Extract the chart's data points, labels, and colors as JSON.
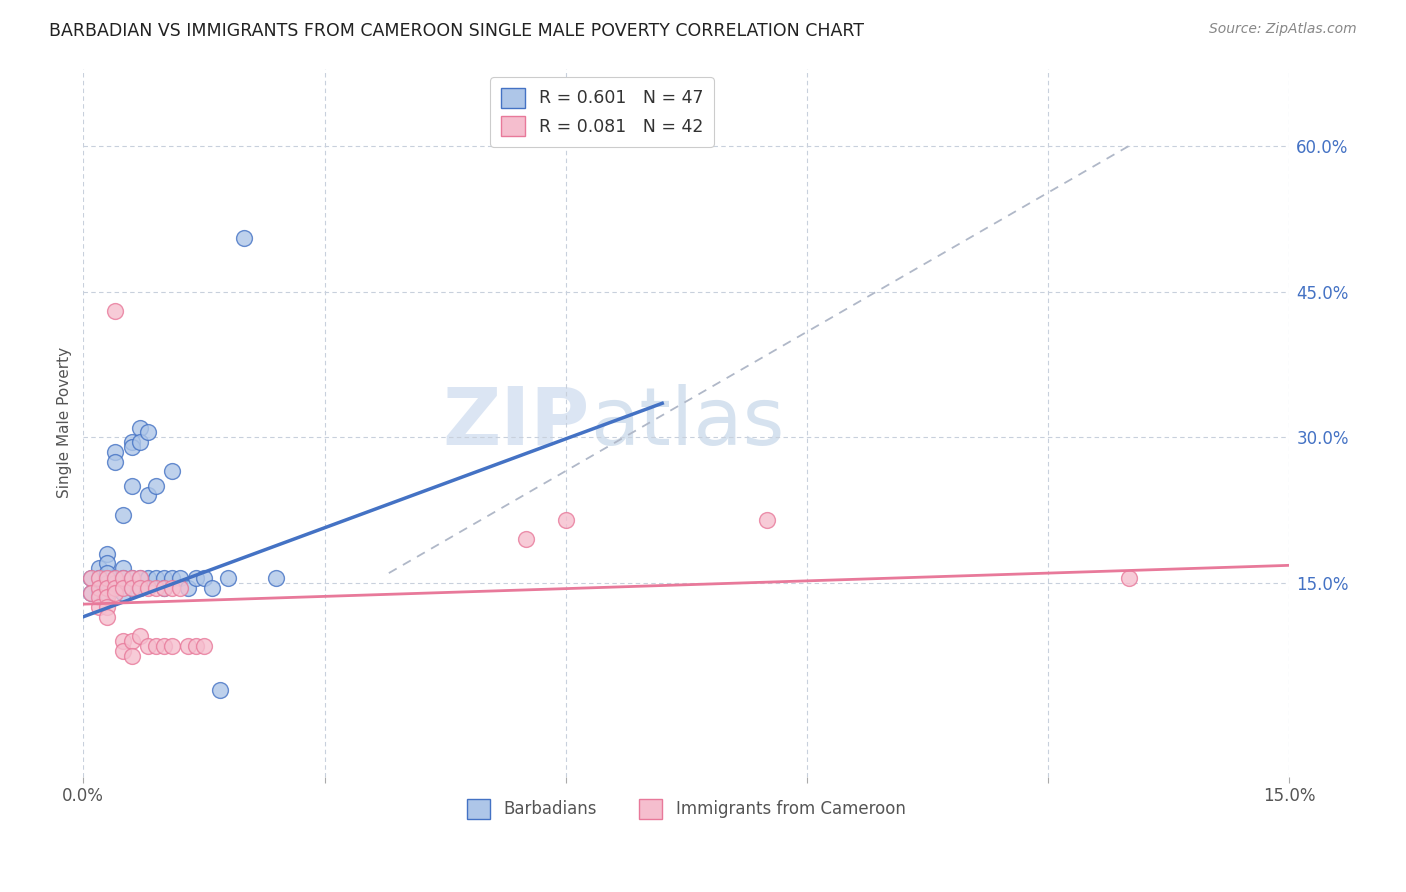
{
  "title": "BARBADIAN VS IMMIGRANTS FROM CAMEROON SINGLE MALE POVERTY CORRELATION CHART",
  "source": "Source: ZipAtlas.com",
  "ylabel": "Single Male Poverty",
  "ylabel_ticks": [
    "15.0%",
    "30.0%",
    "45.0%",
    "60.0%"
  ],
  "ylabel_tick_vals": [
    0.15,
    0.3,
    0.45,
    0.6
  ],
  "xlim": [
    0.0,
    0.15
  ],
  "ylim": [
    -0.05,
    0.68
  ],
  "legend_label1": "Barbadians",
  "legend_label2": "Immigrants from Cameroon",
  "legend_R1": "R = 0.601",
  "legend_N1": "N = 47",
  "legend_R2": "R = 0.081",
  "legend_N2": "N = 42",
  "blue_color": "#4472c4",
  "blue_fill": "#aec6e8",
  "pink_color": "#e8799a",
  "pink_fill": "#f5bece",
  "watermark_zip": "ZIP",
  "watermark_atlas": "atlas",
  "background_color": "#ffffff",
  "grid_color": "#c8d0dc",
  "title_color": "#222222",
  "source_color": "#888888",
  "blue_scatter": [
    [
      0.001,
      0.155
    ],
    [
      0.001,
      0.14
    ],
    [
      0.002,
      0.165
    ],
    [
      0.002,
      0.155
    ],
    [
      0.002,
      0.145
    ],
    [
      0.002,
      0.14
    ],
    [
      0.003,
      0.18
    ],
    [
      0.003,
      0.17
    ],
    [
      0.003,
      0.16
    ],
    [
      0.003,
      0.15
    ],
    [
      0.003,
      0.145
    ],
    [
      0.003,
      0.14
    ],
    [
      0.004,
      0.285
    ],
    [
      0.004,
      0.275
    ],
    [
      0.004,
      0.155
    ],
    [
      0.004,
      0.15
    ],
    [
      0.005,
      0.22
    ],
    [
      0.005,
      0.165
    ],
    [
      0.005,
      0.155
    ],
    [
      0.005,
      0.14
    ],
    [
      0.006,
      0.295
    ],
    [
      0.006,
      0.29
    ],
    [
      0.006,
      0.25
    ],
    [
      0.006,
      0.155
    ],
    [
      0.006,
      0.145
    ],
    [
      0.007,
      0.31
    ],
    [
      0.007,
      0.295
    ],
    [
      0.007,
      0.155
    ],
    [
      0.007,
      0.145
    ],
    [
      0.008,
      0.305
    ],
    [
      0.008,
      0.24
    ],
    [
      0.008,
      0.155
    ],
    [
      0.009,
      0.25
    ],
    [
      0.009,
      0.155
    ],
    [
      0.01,
      0.155
    ],
    [
      0.01,
      0.145
    ],
    [
      0.011,
      0.265
    ],
    [
      0.011,
      0.155
    ],
    [
      0.012,
      0.155
    ],
    [
      0.013,
      0.145
    ],
    [
      0.014,
      0.155
    ],
    [
      0.015,
      0.155
    ],
    [
      0.016,
      0.145
    ],
    [
      0.017,
      0.04
    ],
    [
      0.018,
      0.155
    ],
    [
      0.02,
      0.505
    ],
    [
      0.024,
      0.155
    ]
  ],
  "pink_scatter": [
    [
      0.001,
      0.155
    ],
    [
      0.001,
      0.14
    ],
    [
      0.002,
      0.155
    ],
    [
      0.002,
      0.145
    ],
    [
      0.002,
      0.135
    ],
    [
      0.002,
      0.125
    ],
    [
      0.003,
      0.155
    ],
    [
      0.003,
      0.145
    ],
    [
      0.003,
      0.135
    ],
    [
      0.003,
      0.125
    ],
    [
      0.003,
      0.115
    ],
    [
      0.004,
      0.43
    ],
    [
      0.004,
      0.155
    ],
    [
      0.004,
      0.145
    ],
    [
      0.004,
      0.14
    ],
    [
      0.005,
      0.155
    ],
    [
      0.005,
      0.145
    ],
    [
      0.005,
      0.09
    ],
    [
      0.005,
      0.08
    ],
    [
      0.006,
      0.155
    ],
    [
      0.006,
      0.145
    ],
    [
      0.006,
      0.09
    ],
    [
      0.006,
      0.075
    ],
    [
      0.007,
      0.155
    ],
    [
      0.007,
      0.145
    ],
    [
      0.007,
      0.095
    ],
    [
      0.008,
      0.145
    ],
    [
      0.008,
      0.085
    ],
    [
      0.009,
      0.145
    ],
    [
      0.009,
      0.085
    ],
    [
      0.01,
      0.145
    ],
    [
      0.01,
      0.085
    ],
    [
      0.011,
      0.145
    ],
    [
      0.011,
      0.085
    ],
    [
      0.012,
      0.145
    ],
    [
      0.013,
      0.085
    ],
    [
      0.014,
      0.085
    ],
    [
      0.015,
      0.085
    ],
    [
      0.055,
      0.195
    ],
    [
      0.06,
      0.215
    ],
    [
      0.085,
      0.215
    ],
    [
      0.13,
      0.155
    ]
  ],
  "diag_line": [
    [
      0.038,
      0.16
    ],
    [
      0.13,
      0.6
    ]
  ],
  "blue_line_x": [
    0.0,
    0.072
  ],
  "blue_line_y": [
    0.115,
    0.335
  ],
  "pink_line_x": [
    0.0,
    0.15
  ],
  "pink_line_y": [
    0.128,
    0.168
  ]
}
